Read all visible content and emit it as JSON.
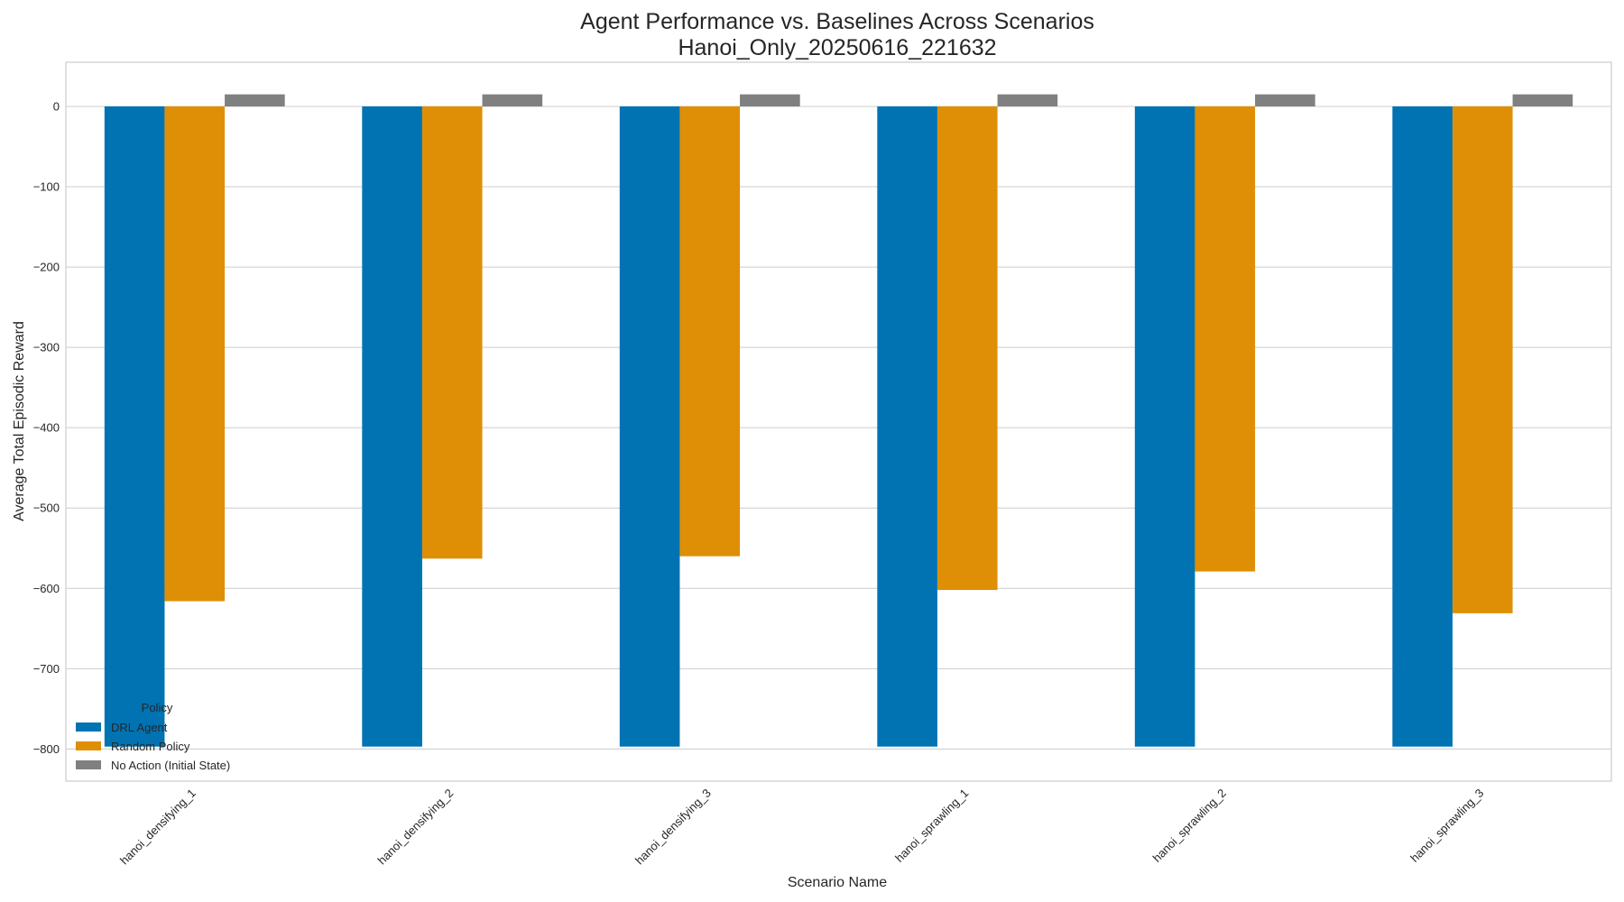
{
  "chart_data": {
    "type": "bar",
    "title": "Agent Performance vs. Baselines Across Scenarios",
    "subtitle": "Hanoi_Only_20250616_221632",
    "xlabel": "Scenario Name",
    "ylabel": "Average Total Episodic Reward",
    "categories": [
      "hanoi_densifying_1",
      "hanoi_densifying_2",
      "hanoi_densifying_3",
      "hanoi_sprawling_1",
      "hanoi_sprawling_2",
      "hanoi_sprawling_3"
    ],
    "series": [
      {
        "name": "DRL Agent",
        "color": "#0173b2",
        "values": [
          -797,
          -797,
          -797,
          -797,
          -797,
          -797
        ]
      },
      {
        "name": "Random Policy",
        "color": "#de8f05",
        "values": [
          -616,
          -563,
          -560,
          -602,
          -579,
          -631
        ]
      },
      {
        "name": "No Action (Initial State)",
        "color": "#808080",
        "values": [
          15,
          15,
          15,
          15,
          15,
          15
        ]
      }
    ],
    "ylim": [
      -840,
      55
    ],
    "yticks": [
      0,
      -100,
      -200,
      -300,
      -400,
      -500,
      -600,
      -700,
      -800
    ],
    "ytick_labels": [
      "0",
      "−100",
      "−200",
      "−300",
      "−400",
      "−500",
      "−600",
      "−700",
      "−800"
    ],
    "grid": "horizontal",
    "legend": {
      "title": "Policy",
      "placement": "bottom-left"
    }
  }
}
